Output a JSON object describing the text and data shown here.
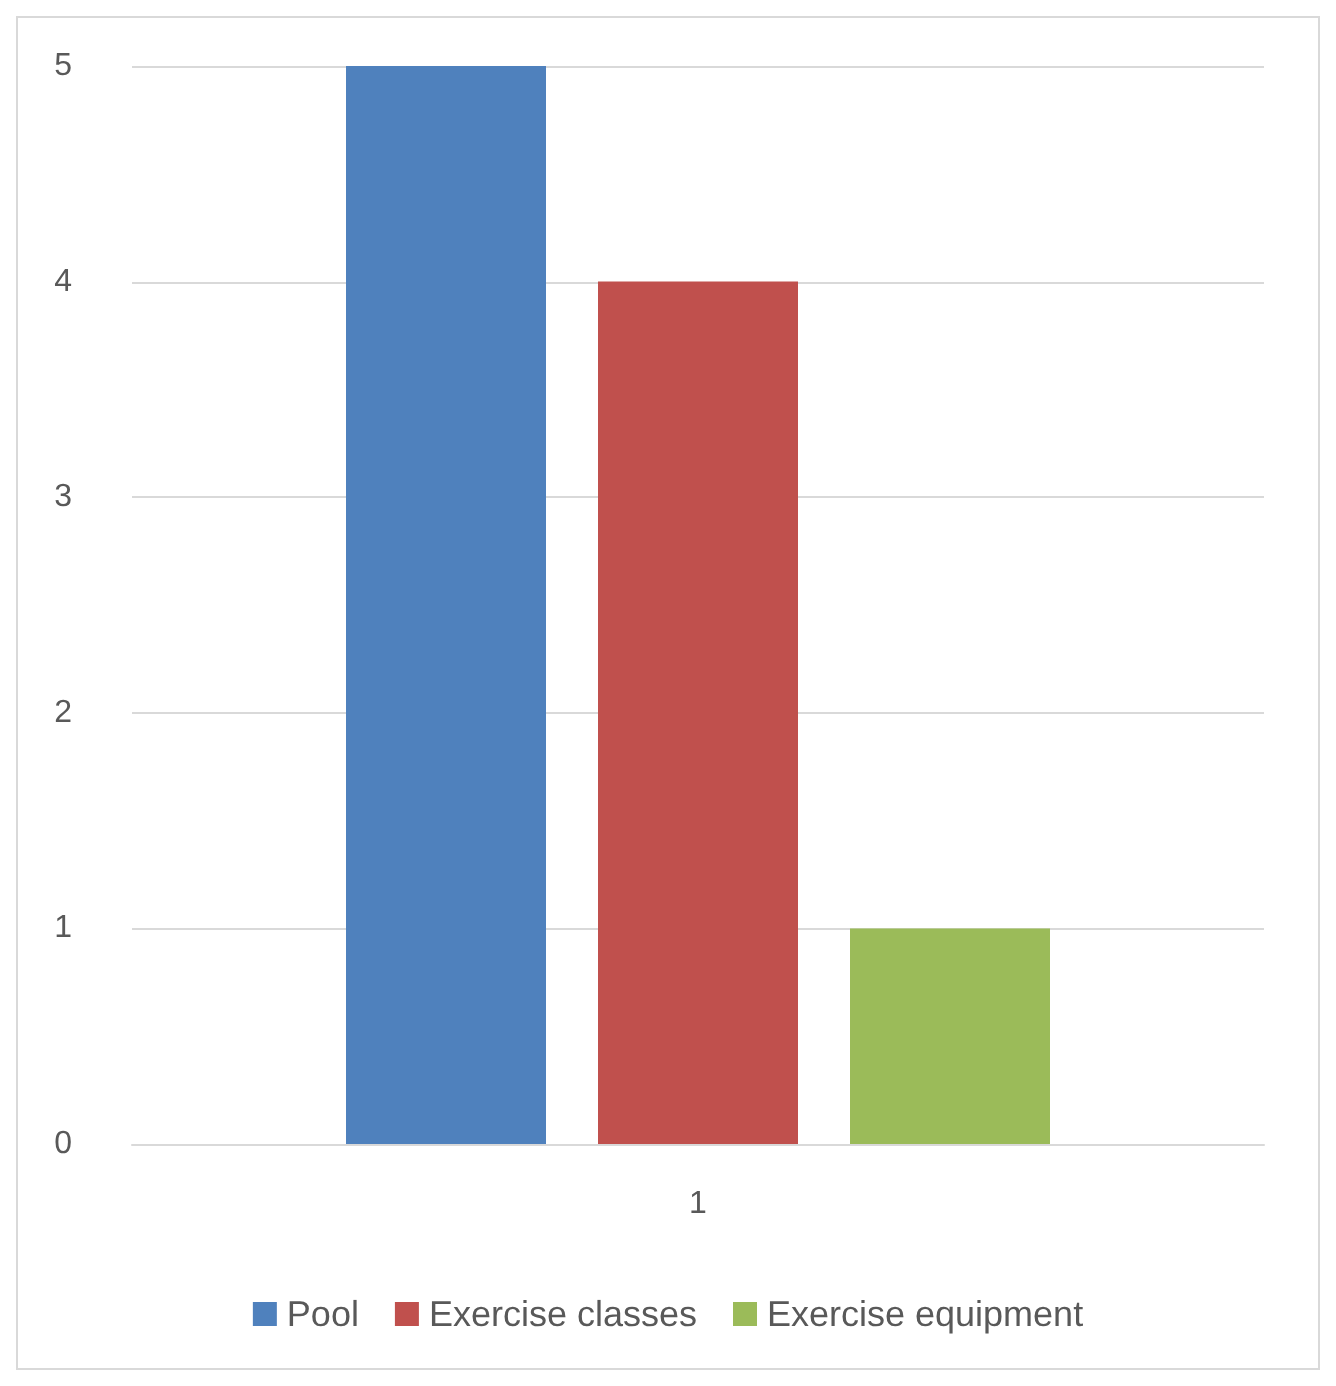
{
  "chart_data": {
    "type": "bar",
    "categories": [
      "1"
    ],
    "series": [
      {
        "name": "Pool",
        "color": "#4f81bd",
        "values": [
          5
        ]
      },
      {
        "name": "Exercise classes",
        "color": "#c0504d",
        "values": [
          4
        ]
      },
      {
        "name": "Exercise equipment",
        "color": "#9bbb59",
        "values": [
          1
        ]
      }
    ],
    "ylim": [
      0,
      5
    ],
    "yticks": [
      0,
      1,
      2,
      3,
      4,
      5
    ],
    "grid": "y",
    "legend": "bottom"
  }
}
